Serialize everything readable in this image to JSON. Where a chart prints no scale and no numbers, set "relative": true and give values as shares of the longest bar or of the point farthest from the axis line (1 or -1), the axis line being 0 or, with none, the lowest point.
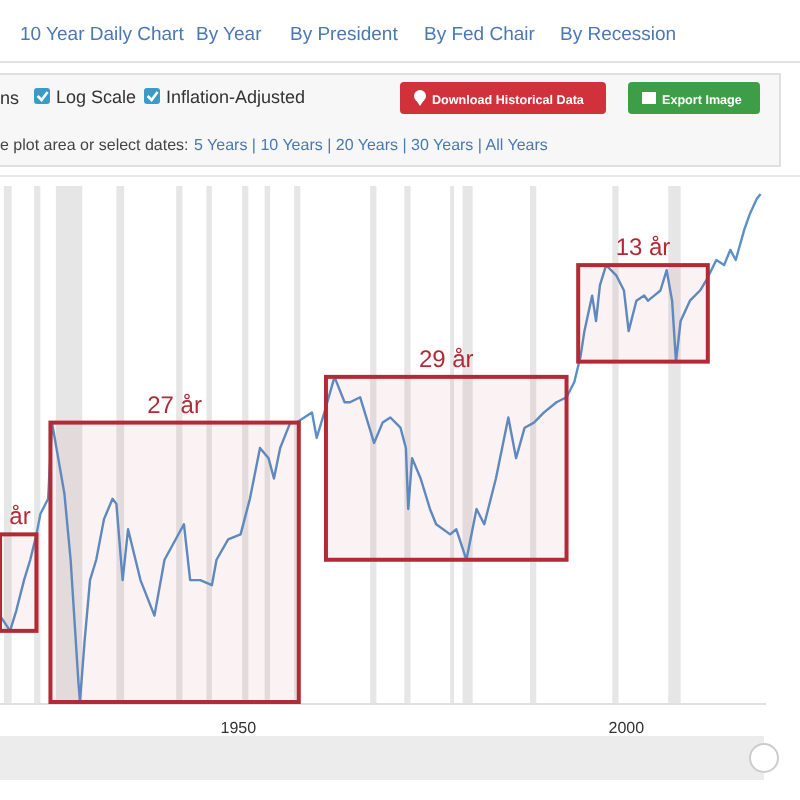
{
  "chart_data": {
    "type": "line",
    "relative": true,
    "x": [
      1919.3,
      1920.6,
      1921.4,
      1922.4,
      1923.2,
      1924.0,
      1924.5,
      1925.5,
      1926.0,
      1926.8,
      1927.6,
      1928.4,
      1928.9,
      1929.4,
      1929.6,
      1930.2,
      1930.9,
      1931.7,
      1932.7,
      1933.8,
      1934.3,
      1935.1,
      1935.8,
      1937.4,
      1939.2,
      1940.5,
      1943.0,
      1943.8,
      1945.1,
      1946.6,
      1947.2,
      1948.7,
      1950.3,
      1951.5,
      1952.8,
      1953.9,
      1954.6,
      1955.4,
      1956.7,
      1957.5,
      1958.5,
      1959.5,
      1960.1,
      1961.1,
      1962.4,
      1963.7,
      1964.4,
      1965.7,
      1967.5,
      1968.6,
      1969.6,
      1970.9,
      1971.6,
      1971.9,
      1972.4,
      1973.5,
      1974.7,
      1975.5,
      1977.3,
      1978.1,
      1979.4,
      1980.7,
      1981.7,
      1983.2,
      1984.8,
      1985.8,
      1986.9,
      1988.1,
      1989.4,
      1991.0,
      1992.3,
      1993.3,
      1994.1,
      1994.6,
      1995.6,
      1996.1,
      1996.6,
      1997.4,
      1998.7,
      1999.7,
      2000.3,
      2001.3,
      2002.3,
      2002.8,
      2003.6,
      2004.4,
      2005.2,
      2005.9,
      2006.4,
      2007.0,
      2008.2,
      2009.5,
      2010.3,
      2011.6,
      2012.6,
      2013.4,
      2014.1,
      2015.2,
      2015.9,
      2016.8,
      2017.3
    ],
    "series": [
      {
        "color": "#5b8fc7",
        "values": [
          0.17,
          0.14,
          0.18,
          0.24,
          0.28,
          0.33,
          0.37,
          0.4,
          0.55,
          0.48,
          0.41,
          0.28,
          0.16,
          0.04,
          0,
          0.12,
          0.24,
          0.28,
          0.36,
          0.4,
          0.39,
          0.24,
          0.34,
          0.24,
          0.17,
          0.28,
          0.35,
          0.24,
          0.24,
          0.23,
          0.28,
          0.32,
          0.33,
          0.4,
          0.5,
          0.48,
          0.44,
          0.5,
          0.55,
          0.55,
          0.56,
          0.57,
          0.52,
          0.57,
          0.64,
          0.59,
          0.59,
          0.6,
          0.51,
          0.55,
          0.56,
          0.54,
          0.5,
          0.38,
          0.48,
          0.44,
          0.38,
          0.35,
          0.33,
          0.34,
          0.28,
          0.38,
          0.35,
          0.44,
          0.56,
          0.48,
          0.54,
          0.55,
          0.57,
          0.59,
          0.6,
          0.63,
          0.68,
          0.73,
          0.8,
          0.75,
          0.82,
          0.86,
          0.84,
          0.81,
          0.73,
          0.79,
          0.8,
          0.79,
          0.8,
          0.81,
          0.85,
          0.79,
          0.67,
          0.75,
          0.79,
          0.81,
          0.83,
          0.87,
          0.86,
          0.89,
          0.87,
          0.93,
          0.96,
          0.99,
          1
        ]
      }
    ],
    "xlim": [
      1919.3,
      2018
    ],
    "xticks": [
      1950,
      2000
    ],
    "bands": [
      {
        "axis": "x",
        "from": 1919.8,
        "to": 1920.8,
        "color": "#e6e6e6"
      },
      {
        "axis": "x",
        "from": 1923.7,
        "to": 1924.5,
        "color": "#e6e6e6"
      },
      {
        "axis": "x",
        "from": 1926.5,
        "to": 1929.9,
        "color": "#e6e6e6"
      },
      {
        "axis": "x",
        "from": 1934.3,
        "to": 1935.3,
        "color": "#e6e6e6"
      },
      {
        "axis": "x",
        "from": 1942.0,
        "to": 1942.8,
        "color": "#e6e6e6"
      },
      {
        "axis": "x",
        "from": 1945.9,
        "to": 1946.6,
        "color": "#e6e6e6"
      },
      {
        "axis": "x",
        "from": 1950.5,
        "to": 1951.3,
        "color": "#e6e6e6"
      },
      {
        "axis": "x",
        "from": 1953.4,
        "to": 1954.1,
        "color": "#e6e6e6"
      },
      {
        "axis": "x",
        "from": 1957.2,
        "to": 1958.0,
        "color": "#e6e6e6"
      },
      {
        "axis": "x",
        "from": 1967.0,
        "to": 1967.8,
        "color": "#e6e6e6"
      },
      {
        "axis": "x",
        "from": 1971.4,
        "to": 1972.2,
        "color": "#e6e6e6"
      },
      {
        "axis": "x",
        "from": 1977.3,
        "to": 1977.8,
        "color": "#e6e6e6"
      },
      {
        "axis": "x",
        "from": 1978.9,
        "to": 1980.2,
        "color": "#e6e6e6"
      },
      {
        "axis": "x",
        "from": 1987.6,
        "to": 1988.4,
        "color": "#e6e6e6"
      },
      {
        "axis": "x",
        "from": 1998.2,
        "to": 1999.0,
        "color": "#e6e6e6"
      },
      {
        "axis": "x",
        "from": 2005.4,
        "to": 2007.0,
        "color": "#e6e6e6"
      },
      {
        "axis": "x",
        "from": 1919.3,
        "to": 1924.0,
        "label": "år",
        "color": "#b22a35"
      },
      {
        "axis": "x",
        "from": 1925.8,
        "to": 1957.8,
        "label": "27 år",
        "color": "#b22a35"
      },
      {
        "axis": "x",
        "from": 1961.3,
        "to": 1992.3,
        "label": "29 år",
        "color": "#b22a35"
      },
      {
        "axis": "x",
        "from": 1993.8,
        "to": 2010.5,
        "label": "13 år",
        "color": "#b22a35"
      }
    ],
    "annotations": [
      "10 Year Daily Chart",
      "By Year",
      "By President",
      "By Fed Chair",
      "By Recession",
      "ns",
      "Log Scale",
      "Inflation-Adjusted",
      "Download Historical Data",
      "Export Image",
      "e plot area or select dates:",
      "5 Years | 10 Years | 20 Years | 30 Years | All Years"
    ]
  }
}
